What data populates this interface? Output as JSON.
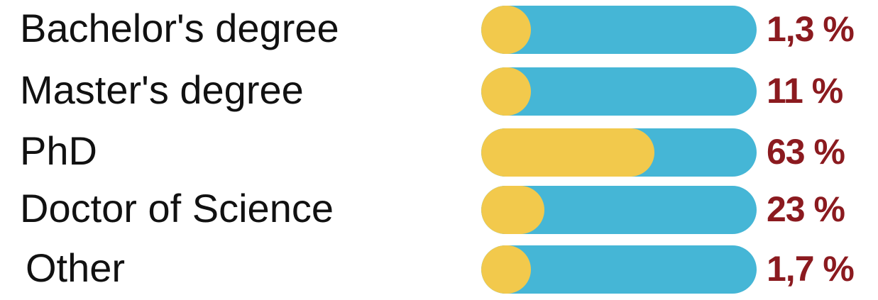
{
  "chart_data": {
    "type": "bar",
    "orientation": "horizontal",
    "categories": [
      "Bachelor's degree",
      "Master's degree",
      "PhD",
      "Doctor of Science",
      "Other"
    ],
    "values": [
      1.3,
      11,
      63,
      23,
      1.7
    ],
    "value_labels": [
      "1,3 %",
      "11 %",
      "63 %",
      "23 %",
      "1,7 %"
    ],
    "unit": "%",
    "title": "",
    "xlabel": "",
    "ylabel": "",
    "xlim": [
      0,
      100
    ],
    "grid": false,
    "legend": "none",
    "colors": {
      "fill": "#F2C94C",
      "track": "#45B6D6",
      "value_text": "#8B1A1F",
      "label_text": "#111111"
    }
  }
}
